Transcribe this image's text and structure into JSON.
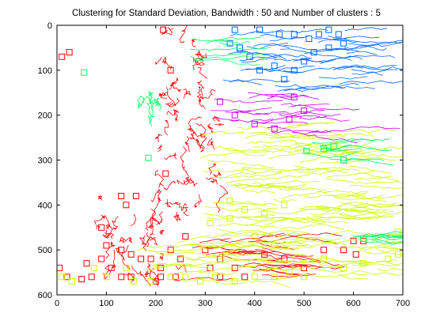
{
  "chart_data": {
    "type": "scatter",
    "title": "Clustering for Standard Deviation, Bandwidth : 50 and Number of clusters : 5",
    "xlabel": "",
    "ylabel": "",
    "xlim": [
      0,
      700
    ],
    "ylim": [
      0,
      600
    ],
    "y_reversed": true,
    "grid": false,
    "legend": "none",
    "x_ticks": [
      0,
      100,
      200,
      300,
      400,
      500,
      600,
      700
    ],
    "y_ticks": [
      0,
      100,
      200,
      300,
      400,
      500,
      600
    ],
    "x_tick_labels": [
      "0",
      "100",
      "200",
      "300",
      "400",
      "500",
      "600",
      "700"
    ],
    "y_tick_labels": [
      "0",
      "100",
      "200",
      "300",
      "400",
      "500",
      "600"
    ],
    "colors": {
      "red": "#ff0000",
      "yellow-green": "#ccff00",
      "blue": "#0066ff",
      "magenta": "#cc00ff",
      "green": "#00ff66"
    },
    "series": [
      {
        "color": "#ff0000",
        "regions": [
          {
            "x": [
              190,
              330
            ],
            "y": [
              130,
              420
            ]
          },
          {
            "x": [
              200,
              300
            ],
            "y": [
              0,
              130
            ]
          },
          {
            "x": [
              80,
              260
            ],
            "y": [
              380,
              560
            ]
          },
          {
            "x": [
              220,
              440
            ],
            "y": [
              470,
              570
            ]
          }
        ],
        "endpoints": [
          [
            10,
            70
          ],
          [
            25,
            60
          ],
          [
            215,
            10
          ],
          [
            230,
            100
          ],
          [
            220,
            330
          ],
          [
            130,
            380
          ],
          [
            140,
            400
          ],
          [
            160,
            380
          ],
          [
            90,
            450
          ],
          [
            100,
            490
          ],
          [
            90,
            520
          ],
          [
            110,
            540
          ],
          [
            130,
            500
          ],
          [
            150,
            510
          ],
          [
            170,
            520
          ],
          [
            190,
            520
          ],
          [
            210,
            560
          ],
          [
            200,
            570
          ],
          [
            150,
            560
          ],
          [
            130,
            560
          ],
          [
            70,
            560
          ],
          [
            60,
            530
          ],
          [
            50,
            565
          ],
          [
            20,
            560
          ],
          [
            5,
            540
          ],
          [
            260,
            470
          ],
          [
            300,
            500
          ],
          [
            330,
            520
          ],
          [
            360,
            540
          ],
          [
            380,
            560
          ],
          [
            420,
            510
          ],
          [
            460,
            520
          ],
          [
            500,
            540
          ],
          [
            540,
            500
          ],
          [
            580,
            500
          ],
          [
            600,
            480
          ],
          [
            620,
            480
          ],
          [
            605,
            510
          ],
          [
            330,
            560
          ],
          [
            310,
            540
          ],
          [
            250,
            520
          ],
          [
            240,
            560
          ],
          [
            210,
            540
          ],
          [
            230,
            500
          ]
        ]
      },
      {
        "color": "#ccff00",
        "regions": [
          {
            "x": [
              280,
              620
            ],
            "y": [
              220,
              480
            ]
          },
          {
            "x": [
              160,
              680
            ],
            "y": [
              480,
              570
            ]
          }
        ],
        "endpoints": [
          [
            10,
            560
          ],
          [
            30,
            570
          ],
          [
            75,
            540
          ],
          [
            100,
            560
          ],
          [
            140,
            540
          ],
          [
            155,
            570
          ],
          [
            190,
            570
          ],
          [
            230,
            560
          ],
          [
            260,
            560
          ],
          [
            290,
            570
          ],
          [
            320,
            560
          ],
          [
            360,
            570
          ],
          [
            400,
            560
          ],
          [
            440,
            560
          ],
          [
            470,
            550
          ],
          [
            500,
            560
          ],
          [
            540,
            520
          ],
          [
            580,
            540
          ],
          [
            620,
            530
          ],
          [
            650,
            470
          ],
          [
            675,
            470
          ],
          [
            690,
            460
          ],
          [
            690,
            510
          ],
          [
            670,
            520
          ],
          [
            350,
            430
          ],
          [
            380,
            410
          ],
          [
            420,
            420
          ],
          [
            460,
            400
          ],
          [
            350,
            390
          ],
          [
            310,
            440
          ],
          [
            400,
            470
          ],
          [
            440,
            490
          ]
        ]
      },
      {
        "color": "#0066ff",
        "regions": [
          {
            "x": [
              330,
              600
            ],
            "y": [
              10,
              150
            ]
          }
        ],
        "endpoints": [
          [
            360,
            10
          ],
          [
            410,
            10
          ],
          [
            450,
            20
          ],
          [
            480,
            20
          ],
          [
            510,
            30
          ],
          [
            530,
            20
          ],
          [
            550,
            10
          ],
          [
            570,
            20
          ],
          [
            580,
            40
          ],
          [
            550,
            50
          ],
          [
            520,
            60
          ],
          [
            500,
            80
          ],
          [
            480,
            100
          ],
          [
            460,
            120
          ],
          [
            440,
            90
          ],
          [
            410,
            100
          ],
          [
            390,
            70
          ],
          [
            370,
            50
          ],
          [
            350,
            40
          ]
        ]
      },
      {
        "color": "#cc00ff",
        "regions": [
          {
            "x": [
              310,
              510
            ],
            "y": [
              140,
              240
            ]
          }
        ],
        "endpoints": [
          [
            330,
            170
          ],
          [
            360,
            200
          ],
          [
            400,
            220
          ],
          [
            440,
            230
          ],
          [
            470,
            210
          ],
          [
            500,
            190
          ],
          [
            480,
            160
          ]
        ]
      },
      {
        "color": "#00ff66",
        "regions": [
          {
            "x": [
              230,
              330
            ],
            "y": [
              20,
              80
            ]
          },
          {
            "x": [
              170,
              200
            ],
            "y": [
              150,
              175
            ]
          },
          {
            "x": [
              500,
              580
            ],
            "y": [
              260,
              300
            ]
          },
          {
            "x": [
              580,
              640
            ],
            "y": [
              460,
              480
            ]
          }
        ],
        "endpoints": [
          [
            55,
            105
          ],
          [
            185,
            295
          ],
          [
            540,
            275
          ],
          [
            560,
            270
          ],
          [
            580,
            300
          ],
          [
            620,
            475
          ],
          [
            505,
            280
          ]
        ]
      }
    ]
  }
}
